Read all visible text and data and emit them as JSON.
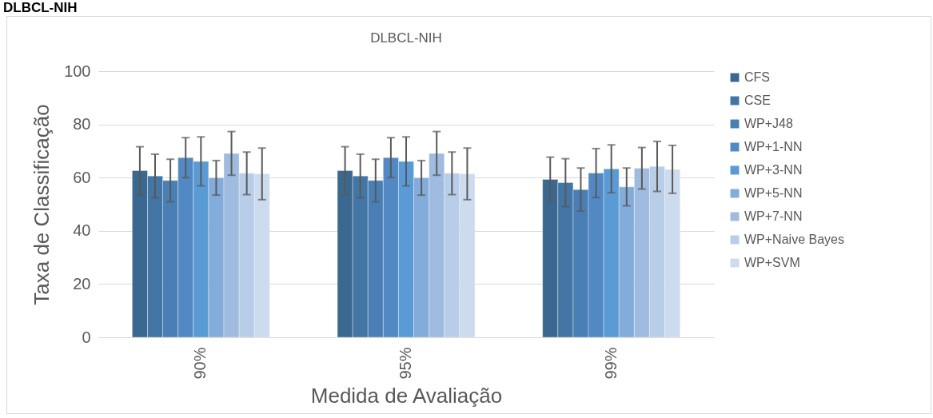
{
  "chart_data": {
    "type": "bar",
    "title": "DLBCL-NIH",
    "xlabel": "Medida de Avaliação",
    "ylabel": "Taxa de Classificação",
    "annotations": [
      "DLBCL-NIH"
    ],
    "categories": [
      "90%",
      "95%",
      "99%"
    ],
    "series": [
      {
        "name": "CFS",
        "color": "#3b6890",
        "values": [
          62.6,
          62.6,
          59.3
        ],
        "errors": [
          9,
          9,
          8.4
        ]
      },
      {
        "name": "CSE",
        "color": "#4375a5",
        "values": [
          60.6,
          60.6,
          58.1
        ],
        "errors": [
          8.2,
          8.2,
          9
        ]
      },
      {
        "name": "WP+J48",
        "color": "#4a7fb5",
        "values": [
          58.9,
          58.9,
          55.5
        ],
        "errors": [
          8,
          8,
          8.1
        ]
      },
      {
        "name": "WP+1-NN",
        "color": "#5289c4",
        "values": [
          67.5,
          67.5,
          61.7
        ],
        "errors": [
          7.5,
          7.5,
          9.2
        ]
      },
      {
        "name": "WP+3-NN",
        "color": "#5b9bd5",
        "values": [
          66.1,
          66.1,
          63.3
        ],
        "errors": [
          9.2,
          9.2,
          9
        ]
      },
      {
        "name": "WP+5-NN",
        "color": "#84acdb",
        "values": [
          59.9,
          59.9,
          56.5
        ],
        "errors": [
          6.5,
          6.5,
          7.1
        ]
      },
      {
        "name": "WP+7-NN",
        "color": "#9fbbe0",
        "values": [
          69.1,
          69.1,
          63.5
        ],
        "errors": [
          8.2,
          8.2,
          7.8
        ]
      },
      {
        "name": "WP+Naive Bayes",
        "color": "#b7cde8",
        "values": [
          61.6,
          61.6,
          64.2
        ],
        "errors": [
          8,
          8,
          9.4
        ]
      },
      {
        "name": "WP+SVM",
        "color": "#cddbee",
        "values": [
          61.4,
          61.4,
          63.1
        ],
        "errors": [
          9.7,
          9.7,
          9
        ]
      }
    ],
    "ylim": [
      0,
      100
    ],
    "yticks": [
      0,
      20,
      40,
      60,
      80,
      100
    ],
    "grid": "y",
    "legend": "right"
  }
}
